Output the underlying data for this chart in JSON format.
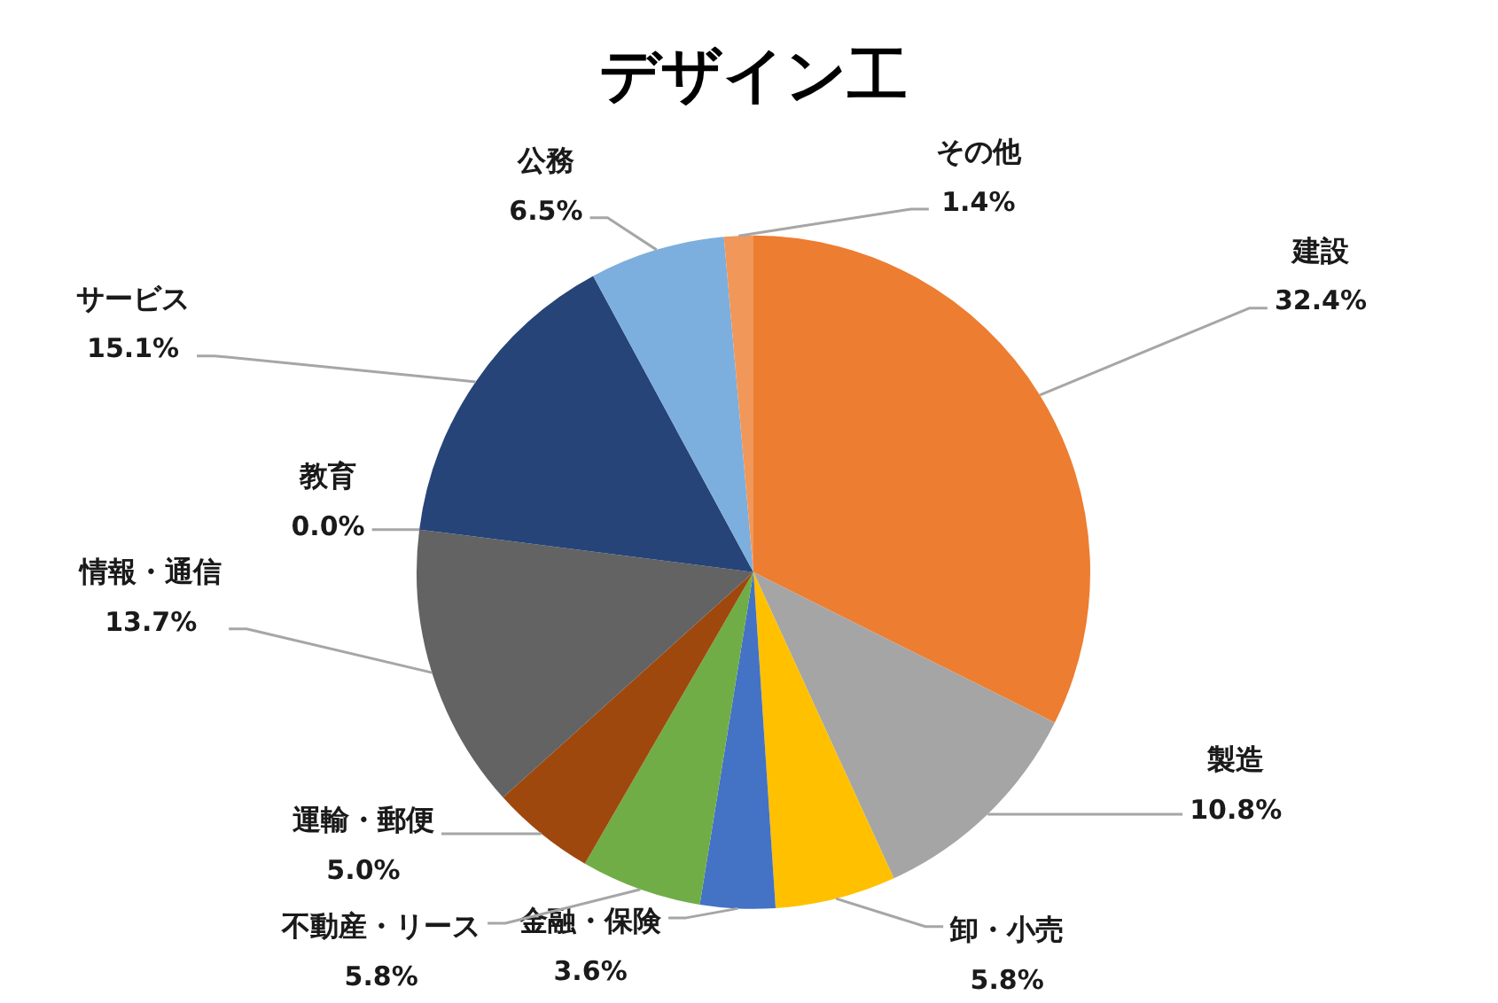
{
  "chart_data": {
    "type": "pie",
    "title": "デザイン工",
    "categories": [
      "建設",
      "製造",
      "卸・小売",
      "金融・保険",
      "不動産・リース",
      "運輸・郵便",
      "情報・通信",
      "教育",
      "サービス",
      "公務",
      "その他"
    ],
    "values": [
      32.4,
      10.8,
      5.8,
      3.6,
      5.8,
      5.0,
      13.7,
      0.0,
      15.1,
      6.5,
      1.4
    ],
    "colors": [
      "#ed7d31",
      "#a5a5a5",
      "#ffc000",
      "#4472c4",
      "#70ad47",
      "#9e480e",
      "#636363",
      "#997300",
      "#264478",
      "#7cafdd",
      "#f1975a"
    ],
    "value_labels": [
      "32.4%",
      "10.8%",
      "5.8%",
      "3.6%",
      "5.8%",
      "5.0%",
      "13.7%",
      "0.0%",
      "15.1%",
      "6.5%",
      "1.4%"
    ]
  }
}
